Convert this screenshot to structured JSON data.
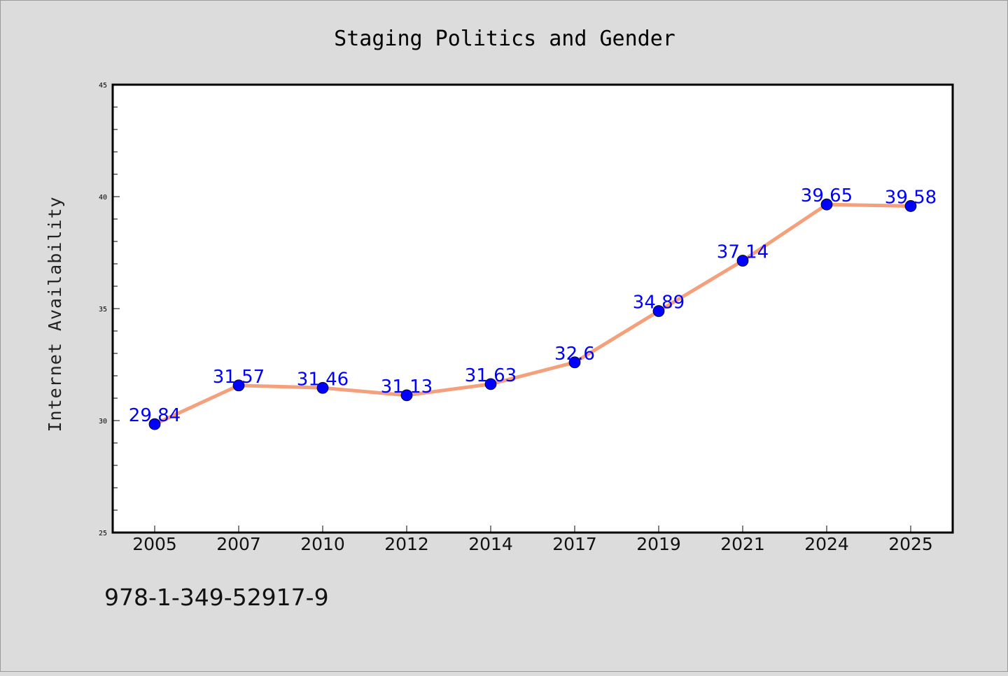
{
  "figure": {
    "background": "#dcdcdc",
    "plot_background": "#ffffff",
    "line_color": "#f4a07c",
    "marker_color": "#0000ff",
    "label_color": "#0000ff",
    "footer_code": "978-1-349-52917-9"
  },
  "chart_data": {
    "type": "line",
    "title": "Staging Politics and Gender",
    "xlabel": "",
    "ylabel": "Internet Availability",
    "categories": [
      "2005",
      "2007",
      "2010",
      "2012",
      "2014",
      "2017",
      "2019",
      "2021",
      "2024",
      "2025"
    ],
    "series": [
      {
        "values": [
          29.84,
          31.57,
          31.46,
          31.13,
          31.63,
          32.6,
          34.89,
          37.14,
          39.65,
          39.58
        ],
        "data_labels": [
          "29.84",
          "31.57",
          "31.46",
          "31.13",
          "31.63",
          "32.6",
          "34.89",
          "37.14",
          "39.65",
          "39.58"
        ]
      }
    ],
    "ylim": [
      25,
      45
    ],
    "yticks": [
      25,
      30,
      35,
      40,
      45
    ],
    "ytick_labels": [
      "25",
      "30",
      "35",
      "40",
      "45"
    ],
    "y_minor_step": 1,
    "grid": false,
    "legend": "none"
  }
}
